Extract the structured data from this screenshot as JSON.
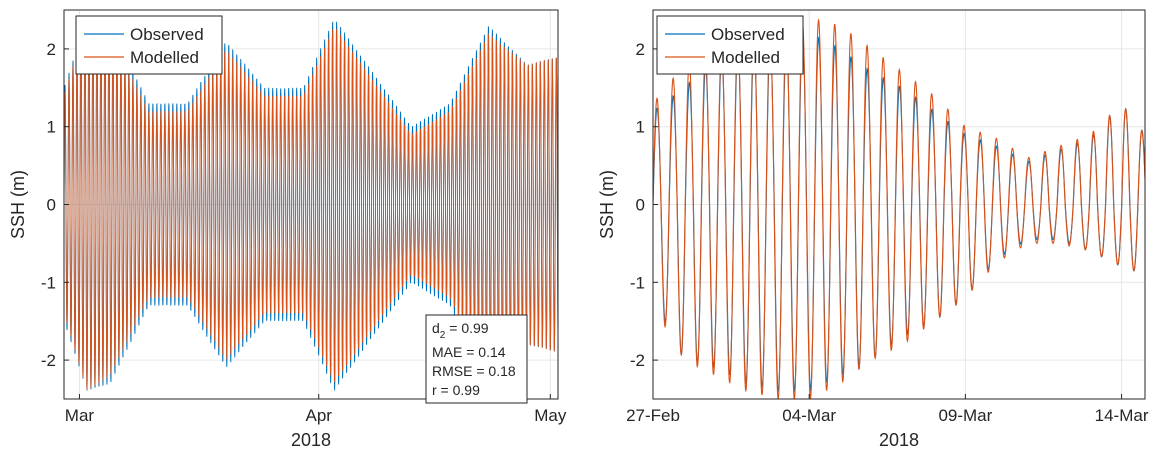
{
  "chart_data": [
    {
      "type": "line",
      "panel": "left",
      "title": "",
      "xlabel": "2018",
      "ylabel": "SSH (m)",
      "xlim": [
        "2018-02-27",
        "2018-05-02"
      ],
      "ylim": [
        -2.5,
        2.5
      ],
      "xticks": [
        {
          "date": "2018-03-01",
          "label": "Mar"
        },
        {
          "date": "2018-04-01",
          "label": "Apr"
        },
        {
          "date": "2018-05-01",
          "label": "May"
        }
      ],
      "yticks": [
        {
          "value": -2,
          "label": "-2"
        },
        {
          "value": -1,
          "label": "-1"
        },
        {
          "value": 0,
          "label": "0"
        },
        {
          "value": 1,
          "label": "1"
        },
        {
          "value": 2,
          "label": "2"
        }
      ],
      "grid": true,
      "legend_position": "top-left",
      "series": [
        {
          "name": "Observed",
          "color": "#0072BD"
        },
        {
          "name": "Modelled",
          "color": "#D95319"
        }
      ],
      "tidal_envelope": {
        "dates": [
          "2018-02-27",
          "2018-03-02",
          "2018-03-05",
          "2018-03-10",
          "2018-03-15",
          "2018-03-20",
          "2018-03-25",
          "2018-03-30",
          "2018-04-03",
          "2018-04-08",
          "2018-04-13",
          "2018-04-18",
          "2018-04-23",
          "2018-04-28",
          "2018-05-02"
        ],
        "observed_amplitude": [
          1.5,
          2.4,
          2.3,
          1.3,
          1.3,
          2.1,
          1.5,
          1.5,
          2.4,
          1.7,
          1.0,
          1.3,
          2.3,
          1.8,
          1.9
        ],
        "modelled_amplitude": [
          1.4,
          2.4,
          2.2,
          1.2,
          1.2,
          2.0,
          1.4,
          1.4,
          2.3,
          1.6,
          0.9,
          1.2,
          2.2,
          1.8,
          1.9
        ],
        "semidiurnal_period_hours": 12.42
      },
      "stats_box": {
        "d2_label": "d",
        "d2_sub": "2",
        "d2_value": " = 0.99",
        "mae": "MAE = 0.14",
        "rmse": "RMSE = 0.18",
        "r": "r = 0.99"
      }
    },
    {
      "type": "line",
      "panel": "right",
      "title": "",
      "xlabel": "2018",
      "ylabel": "SSH (m)",
      "xlim": [
        "2018-02-27",
        "2018-03-14T18:00"
      ],
      "ylim": [
        -2.5,
        2.5
      ],
      "xticks": [
        {
          "date": "2018-02-27",
          "label": "27-Feb"
        },
        {
          "date": "2018-03-04",
          "label": "04-Mar"
        },
        {
          "date": "2018-03-09",
          "label": "09-Mar"
        },
        {
          "date": "2018-03-14",
          "label": "14-Mar"
        }
      ],
      "yticks": [
        {
          "value": -2,
          "label": "-2"
        },
        {
          "value": -1,
          "label": "-1"
        },
        {
          "value": 0,
          "label": "0"
        },
        {
          "value": 1,
          "label": "1"
        },
        {
          "value": 2,
          "label": "2"
        }
      ],
      "grid": true,
      "legend_position": "top-left",
      "series": [
        {
          "name": "Observed",
          "color": "#0072BD"
        },
        {
          "name": "Modelled",
          "color": "#D95319"
        }
      ],
      "tidal_envelope": {
        "dates": [
          "2018-02-27",
          "2018-02-28",
          "2018-03-01",
          "2018-03-02",
          "2018-03-03",
          "2018-03-04",
          "2018-03-05",
          "2018-03-06",
          "2018-03-07",
          "2018-03-08",
          "2018-03-09",
          "2018-03-10",
          "2018-03-11",
          "2018-03-12",
          "2018-03-13",
          "2018-03-14",
          "2018-03-14T18:00"
        ],
        "observed_max": [
          1.2,
          1.5,
          1.9,
          2.1,
          2.1,
          2.2,
          2.0,
          1.7,
          1.5,
          1.2,
          0.9,
          0.75,
          0.55,
          0.7,
          0.85,
          1.3,
          0.9
        ],
        "observed_min": [
          -1.2,
          -2.0,
          -2.1,
          -2.3,
          -2.4,
          -2.4,
          -2.2,
          -2.0,
          -1.7,
          -1.5,
          -1.2,
          -0.7,
          -0.45,
          -0.45,
          -0.6,
          -0.8,
          -0.9
        ],
        "modelled_max": [
          1.3,
          1.8,
          2.0,
          2.2,
          2.2,
          2.4,
          2.3,
          2.0,
          1.7,
          1.4,
          1.0,
          0.85,
          0.6,
          0.75,
          0.9,
          1.3,
          0.9
        ],
        "modelled_min": [
          -1.3,
          -2.0,
          -2.2,
          -2.4,
          -2.5,
          -2.5,
          -2.3,
          -2.0,
          -1.8,
          -1.5,
          -1.2,
          -0.75,
          -0.5,
          -0.5,
          -0.6,
          -0.8,
          -0.9
        ],
        "semidiurnal_period_hours": 12.42
      }
    }
  ]
}
